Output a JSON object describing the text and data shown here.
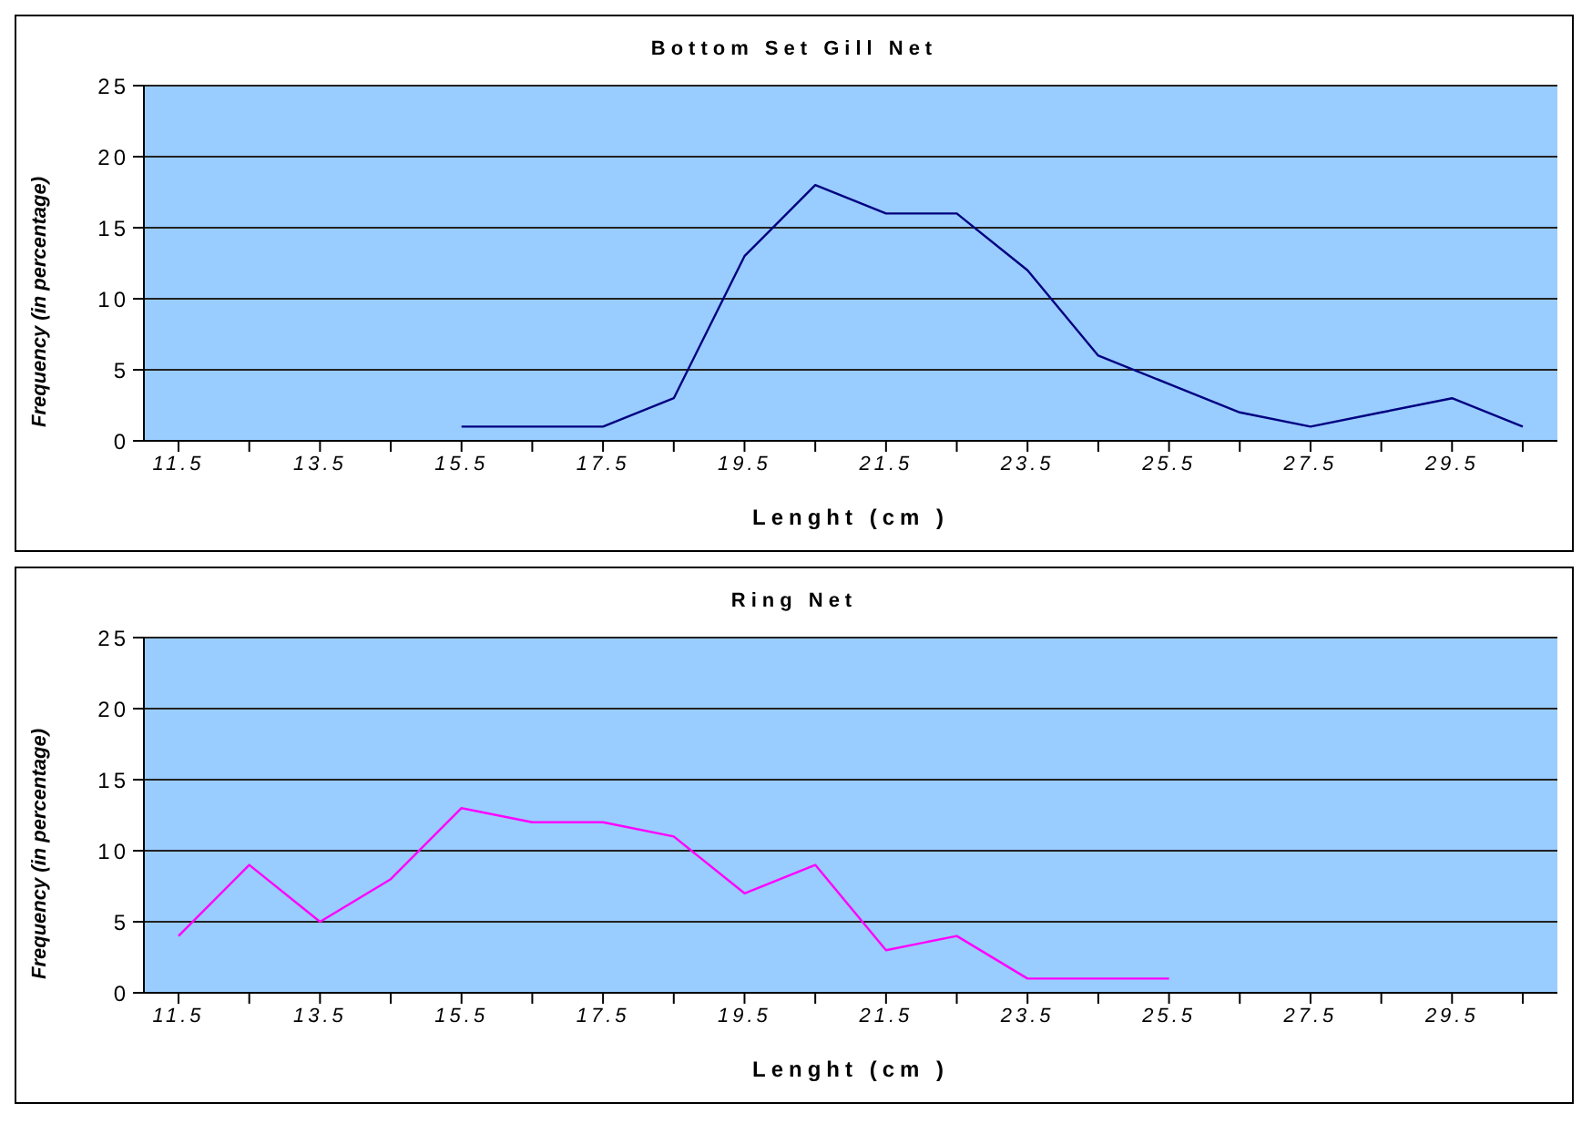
{
  "chart_data": [
    {
      "type": "line",
      "title": "Bottom Set Gill Net",
      "xlabel": "Lenght (cm )",
      "ylabel": "Frequency (in percentage)",
      "categories": [
        "11.5",
        null,
        "13.5",
        null,
        "15.5",
        null,
        "17.5",
        null,
        "19.5",
        null,
        "21.5",
        null,
        "23.5",
        null,
        "25.5",
        null,
        "27.5",
        null,
        "29.5",
        null
      ],
      "series": [
        {
          "color": "#000080",
          "values": [
            null,
            null,
            null,
            null,
            1,
            1,
            1,
            3,
            13,
            18,
            16,
            16,
            12,
            6,
            4,
            2,
            1,
            2,
            3,
            1
          ]
        }
      ],
      "ylim": [
        0,
        25
      ],
      "yticks": [
        0,
        5,
        10,
        15,
        20,
        25
      ],
      "grid": "y",
      "marker": "none"
    },
    {
      "type": "line",
      "title": "Ring Net",
      "xlabel": "Lenght (cm )",
      "ylabel": "Frequency (in percentage)",
      "categories": [
        "11.5",
        null,
        "13.5",
        null,
        "15.5",
        null,
        "17.5",
        null,
        "19.5",
        null,
        "21.5",
        null,
        "23.5",
        null,
        "25.5",
        null,
        "27.5",
        null,
        "29.5",
        null
      ],
      "series": [
        {
          "color": "#ff00ff",
          "values": [
            4,
            9,
            5,
            8,
            13,
            12,
            12,
            11,
            7,
            9,
            3,
            4,
            1,
            1,
            1,
            null,
            null,
            null,
            null,
            null
          ]
        }
      ],
      "ylim": [
        0,
        25
      ],
      "yticks": [
        0,
        5,
        10,
        15,
        20,
        25
      ],
      "grid": "y",
      "marker": "none"
    }
  ]
}
